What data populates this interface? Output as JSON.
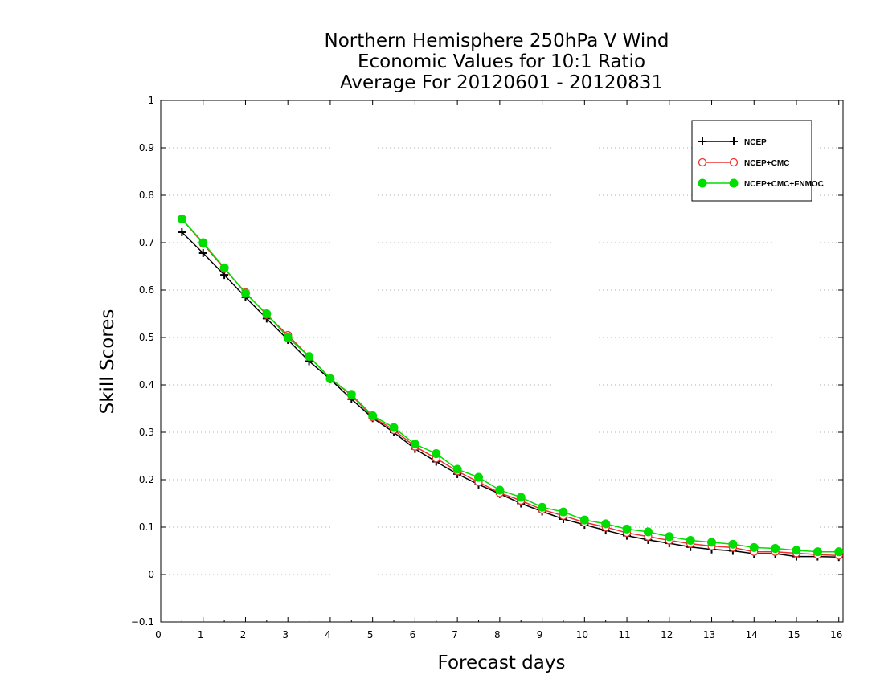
{
  "chart_data": {
    "type": "line",
    "title": [
      "Northern Hemisphere 250hPa V Wind",
      "Economic Values for 10:1 Ratio",
      "Average For 20120601 - 20120831"
    ],
    "xlabel": "Forecast days",
    "ylabel": "Skill Scores",
    "xlim": [
      0,
      16.1
    ],
    "ylim": [
      -0.1,
      1
    ],
    "xticks": [
      "0",
      "1",
      "2",
      "3",
      "4",
      "5",
      "6",
      "7",
      "8",
      "9",
      "10",
      "11",
      "12",
      "13",
      "14",
      "15",
      "16"
    ],
    "yticks": [
      "−0.1",
      "0",
      "0.1",
      "0.2",
      "0.3",
      "0.4",
      "0.5",
      "0.6",
      "0.7",
      "0.8",
      "0.9",
      "1"
    ],
    "grid": "horizontal-dotted",
    "legend_position": "top-right",
    "x": [
      0.5,
      1,
      1.5,
      2,
      2.5,
      3,
      3.5,
      4,
      4.5,
      5,
      5.5,
      6,
      6.5,
      7,
      7.5,
      8,
      8.5,
      9,
      9.5,
      10,
      10.5,
      11,
      11.5,
      12,
      12.5,
      13,
      13.5,
      14,
      14.5,
      15,
      15.5,
      16
    ],
    "series": [
      {
        "name": "NCEP",
        "color": "#000000",
        "marker": "plus",
        "values": [
          0.722,
          0.678,
          0.632,
          0.585,
          0.54,
          0.495,
          0.45,
          0.412,
          0.37,
          0.33,
          0.3,
          0.265,
          0.238,
          0.212,
          0.19,
          0.17,
          0.15,
          0.133,
          0.117,
          0.105,
          0.093,
          0.082,
          0.073,
          0.066,
          0.058,
          0.053,
          0.05,
          0.044,
          0.044,
          0.038,
          0.038,
          0.037
        ]
      },
      {
        "name": "NCEP+CMC",
        "color": "#ee3030",
        "marker": "open-circle",
        "values": [
          0.75,
          0.698,
          0.645,
          0.595,
          0.548,
          0.505,
          0.46,
          0.414,
          0.378,
          0.332,
          0.305,
          0.27,
          0.245,
          0.218,
          0.195,
          0.172,
          0.156,
          0.137,
          0.124,
          0.11,
          0.1,
          0.088,
          0.08,
          0.072,
          0.065,
          0.06,
          0.057,
          0.048,
          0.048,
          0.045,
          0.042,
          0.04
        ]
      },
      {
        "name": "NCEP+CMC+FNMOC",
        "color": "#00dd00",
        "marker": "filled-circle",
        "values": [
          0.75,
          0.7,
          0.647,
          0.593,
          0.55,
          0.5,
          0.46,
          0.413,
          0.38,
          0.335,
          0.31,
          0.275,
          0.255,
          0.222,
          0.205,
          0.178,
          0.163,
          0.142,
          0.132,
          0.115,
          0.107,
          0.096,
          0.09,
          0.08,
          0.072,
          0.068,
          0.064,
          0.057,
          0.055,
          0.051,
          0.048,
          0.048
        ]
      }
    ]
  }
}
